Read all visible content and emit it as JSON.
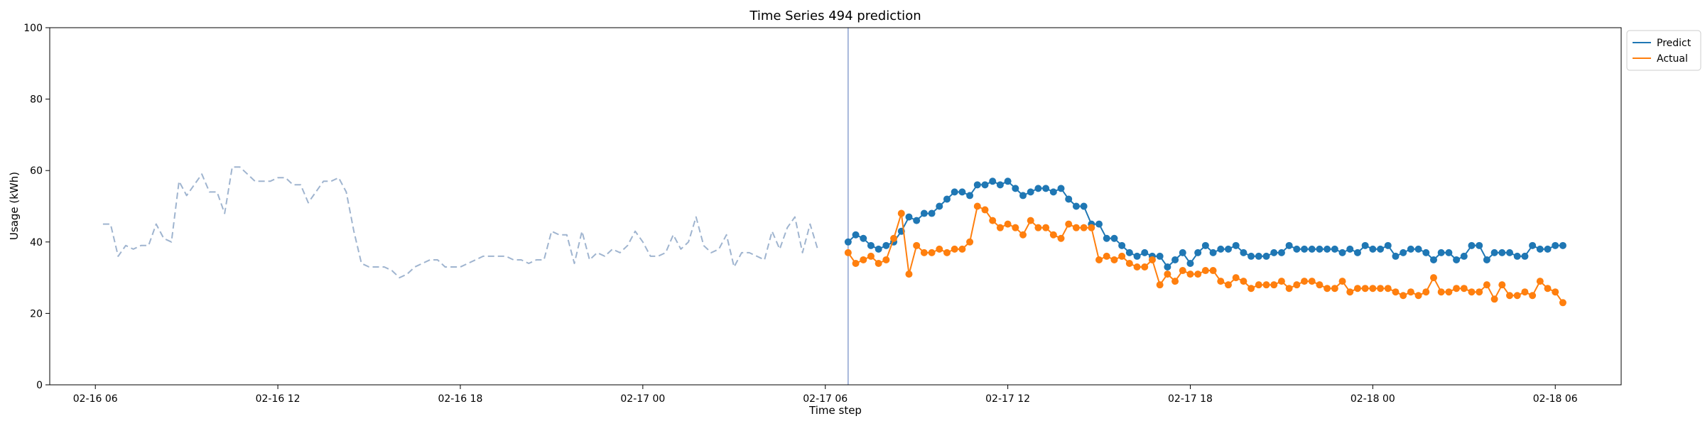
{
  "chart_data": {
    "type": "line",
    "title": "Time Series 494 prediction",
    "xlabel": "Time step",
    "ylabel": "Usage (kWh)",
    "ylim": [
      0,
      100
    ],
    "yticks": [
      0,
      20,
      40,
      60,
      80,
      100
    ],
    "time_unit_minutes": 15,
    "xlim": [
      "2016-02-16 04:30",
      "2016-02-18 08:10"
    ],
    "xticks": [
      {
        "at": "2016-02-16 06:00",
        "label": "02-16 06"
      },
      {
        "at": "2016-02-16 12:00",
        "label": "02-16 12"
      },
      {
        "at": "2016-02-16 18:00",
        "label": "02-16 18"
      },
      {
        "at": "2016-02-17 00:00",
        "label": "02-17 00"
      },
      {
        "at": "2016-02-17 06:00",
        "label": "02-17 06"
      },
      {
        "at": "2016-02-17 12:00",
        "label": "02-17 12"
      },
      {
        "at": "2016-02-17 18:00",
        "label": "02-17 18"
      },
      {
        "at": "2016-02-18 00:00",
        "label": "02-18 00"
      },
      {
        "at": "2016-02-18 06:00",
        "label": "02-18 06"
      }
    ],
    "forecast_start": "2016-02-17 06:45",
    "legend": {
      "placement": "upper-right outside",
      "entries": [
        "Predict",
        "Actual"
      ]
    },
    "grid": false,
    "series": [
      {
        "name": "history",
        "style": "dashed",
        "color": "#9fb4cf",
        "start": "2016-02-16 06:15",
        "values": [
          45,
          45,
          36,
          39,
          38,
          39,
          39,
          45,
          41,
          40,
          57,
          53,
          56,
          59,
          54,
          54,
          48,
          61,
          61,
          59,
          57,
          57,
          57,
          58,
          58,
          56,
          56,
          51,
          54,
          57,
          57,
          58,
          54,
          43,
          34,
          33,
          33,
          33,
          32,
          30,
          31,
          33,
          34,
          35,
          35,
          33,
          33,
          33,
          34,
          35,
          36,
          36,
          36,
          36,
          35,
          35,
          34,
          35,
          35,
          43,
          42,
          42,
          34,
          43,
          35,
          37,
          36,
          38,
          37,
          39,
          43,
          40,
          36,
          36,
          37,
          42,
          38,
          40,
          47,
          39,
          37,
          38,
          42,
          33,
          37,
          37,
          36,
          35,
          43,
          38,
          44,
          47,
          37,
          45,
          38
        ]
      },
      {
        "name": "Predict",
        "color": "#1f77b4",
        "start": "2016-02-17 06:45",
        "values": [
          40,
          42,
          41,
          39,
          38,
          39,
          40,
          43,
          47,
          46,
          48,
          48,
          50,
          52,
          54,
          54,
          53,
          56,
          56,
          57,
          56,
          57,
          55,
          53,
          54,
          55,
          55,
          54,
          55,
          52,
          50,
          50,
          45,
          45,
          41,
          41,
          39,
          37,
          36,
          37,
          36,
          36,
          33,
          35,
          37,
          34,
          37,
          39,
          37,
          38,
          38,
          39,
          37,
          36,
          36,
          36,
          37,
          37,
          39,
          38,
          38,
          38,
          38,
          38,
          38,
          37,
          38,
          37,
          39,
          38,
          38,
          39,
          36,
          37,
          38,
          38,
          37,
          35,
          37,
          37,
          35,
          36,
          39,
          39,
          35,
          37,
          37,
          37,
          36,
          36,
          39,
          38,
          38,
          39,
          39
        ]
      },
      {
        "name": "Actual",
        "color": "#ff7f0e",
        "start": "2016-02-17 06:45",
        "values": [
          37,
          34,
          35,
          36,
          34,
          35,
          41,
          48,
          31,
          39,
          37,
          37,
          38,
          37,
          38,
          38,
          40,
          50,
          49,
          46,
          44,
          45,
          44,
          42,
          46,
          44,
          44,
          42,
          41,
          45,
          44,
          44,
          44,
          35,
          36,
          35,
          36,
          34,
          33,
          33,
          35,
          28,
          31,
          29,
          32,
          31,
          31,
          32,
          32,
          29,
          28,
          30,
          29,
          27,
          28,
          28,
          28,
          29,
          27,
          28,
          29,
          29,
          28,
          27,
          27,
          29,
          26,
          27,
          27,
          27,
          27,
          27,
          26,
          25,
          26,
          25,
          26,
          30,
          26,
          26,
          27,
          27,
          26,
          26,
          28,
          24,
          28,
          25,
          25,
          26,
          25,
          29,
          27,
          26,
          23
        ]
      }
    ]
  }
}
